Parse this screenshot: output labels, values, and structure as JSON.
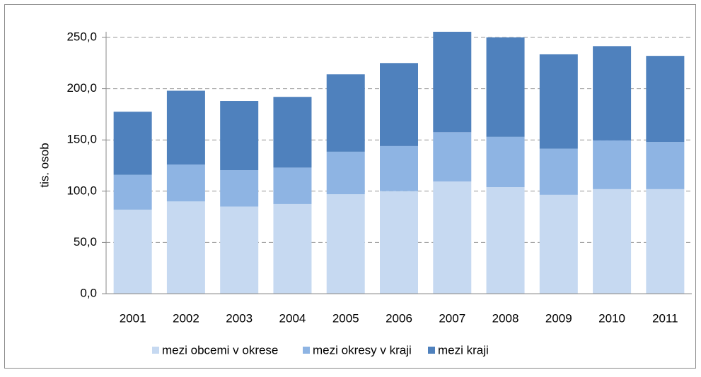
{
  "chart_data": {
    "type": "stacked_bar",
    "y_label": "tis. osob",
    "categories": [
      "2001",
      "2002",
      "2003",
      "2004",
      "2005",
      "2006",
      "2007",
      "2008",
      "2009",
      "2010",
      "2011"
    ],
    "series": [
      {
        "name": "mezi obcemi v okrese",
        "color": "#c6d9f1",
        "values": [
          82,
          90,
          85,
          87.5,
          97,
          100,
          109.5,
          104,
          96.5,
          102,
          102
        ]
      },
      {
        "name": "mezi okresy v kraji",
        "color": "#8eb4e3",
        "values": [
          34,
          36,
          35.5,
          35.5,
          41.5,
          44,
          48,
          49,
          45,
          47.5,
          46
        ]
      },
      {
        "name": "mezi kraji",
        "color": "#4f81bd",
        "values": [
          61.5,
          72,
          67.5,
          69,
          75.5,
          81,
          98,
          97,
          92,
          92,
          84
        ]
      }
    ],
    "ylim": [
      0,
      250
    ],
    "yticks": [
      {
        "value": 0,
        "label": "0,0"
      },
      {
        "value": 50,
        "label": "50,0"
      },
      {
        "value": 100,
        "label": "100,0"
      },
      {
        "value": 150,
        "label": "150,0"
      },
      {
        "value": 200,
        "label": "200,0"
      },
      {
        "value": 250,
        "label": "250,0"
      }
    ],
    "grid": true,
    "legend": "bottom"
  }
}
